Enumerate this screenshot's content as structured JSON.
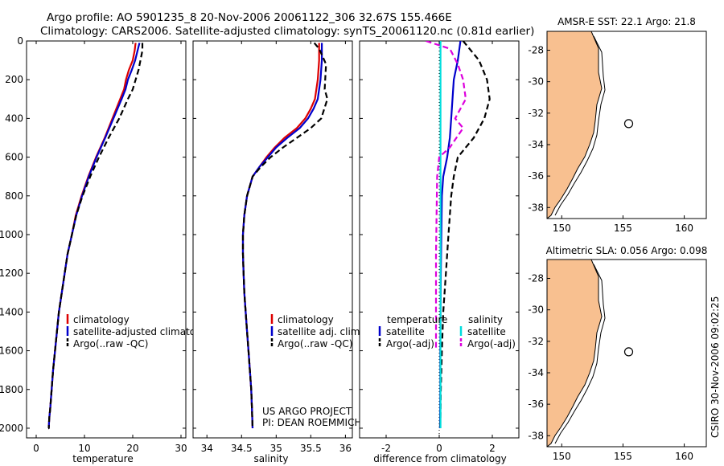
{
  "header": {
    "line1": "Argo profile: AO 5901235_8 20-Nov-2006 20061122_306 32.67S 155.466E",
    "line2": "Climatology: CARS2006. Satellite-adjusted climatology: synTS_20061120.nc (0.81d earlier)"
  },
  "credit": "CSIRO 30-Nov-2006 09:02:25",
  "project": {
    "line1": "US ARGO PROJECT",
    "line2": "PI: DEAN ROEMMICH"
  },
  "colors": {
    "climatology": "#dd0000",
    "satellite": "#0000cc",
    "argo": "#000000",
    "sal_satellite": "#00dddd",
    "sal_argo": "#dd00dd",
    "land": "#f8c090"
  },
  "chart_data": [
    {
      "type": "line",
      "xlabel": "temperature",
      "ylabel": "",
      "xlim": [
        -2,
        31
      ],
      "ylim": [
        2050,
        0
      ],
      "xticks": [
        0,
        10,
        20,
        30
      ],
      "yticks": [
        0,
        200,
        400,
        600,
        800,
        1000,
        1200,
        1400,
        1600,
        1800,
        2000
      ],
      "legend": [
        "climatology",
        "satellite-adjusted climatology",
        "Argo(..raw -QC)"
      ],
      "series": [
        {
          "name": "climatology",
          "color": "#dd0000",
          "dash": "",
          "x": [
            20.6,
            20.4,
            20.0,
            19.2,
            18.6,
            18.2,
            17.4,
            15.8,
            14.2,
            12.4,
            10.8,
            9.4,
            8.2,
            7.4,
            6.5,
            5.9,
            5.3,
            4.7,
            4.3,
            3.9,
            3.5,
            3.2,
            2.9,
            2.7,
            2.6,
            2.5
          ],
          "y": [
            10,
            50,
            100,
            150,
            200,
            250,
            300,
            400,
            500,
            600,
            700,
            800,
            900,
            1000,
            1100,
            1200,
            1300,
            1400,
            1500,
            1600,
            1700,
            1800,
            1900,
            1950,
            2000,
            2000
          ]
        },
        {
          "name": "satellite-adjusted climatology",
          "color": "#0000cc",
          "dash": "",
          "x": [
            21.4,
            21.0,
            20.5,
            19.8,
            19.0,
            18.5,
            17.7,
            16.0,
            14.3,
            12.5,
            10.9,
            9.5,
            8.3,
            7.4,
            6.5,
            5.9,
            5.3,
            4.7,
            4.3,
            3.9,
            3.5,
            3.2,
            2.9,
            2.7,
            2.6,
            2.5
          ],
          "y": [
            10,
            50,
            100,
            150,
            200,
            250,
            300,
            400,
            500,
            600,
            700,
            800,
            900,
            1000,
            1100,
            1200,
            1300,
            1400,
            1500,
            1600,
            1700,
            1800,
            1900,
            1950,
            2000,
            2000
          ]
        },
        {
          "name": "Argo(..raw -QC)",
          "color": "#000000",
          "dash": "7,4",
          "x": [
            22.0,
            22.0,
            21.6,
            21.2,
            20.6,
            20.0,
            19.0,
            17.2,
            15.0,
            13.0,
            11.2,
            9.6,
            8.3,
            7.4,
            6.5,
            5.9,
            5.3,
            4.7,
            4.3,
            3.9,
            3.5,
            3.2,
            2.9,
            2.7,
            2.6,
            2.5
          ],
          "y": [
            10,
            50,
            100,
            150,
            200,
            250,
            300,
            400,
            500,
            600,
            700,
            800,
            900,
            1000,
            1100,
            1200,
            1300,
            1400,
            1500,
            1600,
            1700,
            1800,
            1900,
            1950,
            2000,
            2000
          ]
        }
      ]
    },
    {
      "type": "line",
      "xlabel": "salinity",
      "ylabel": "",
      "xlim": [
        33.8,
        36.1
      ],
      "ylim": [
        2050,
        0
      ],
      "xticks": [
        34,
        34.5,
        35,
        35.5,
        36
      ],
      "legend": [
        "climatology",
        "satellite adj. clim.",
        "Argo(..raw -QC)"
      ],
      "series": [
        {
          "name": "climatology",
          "color": "#dd0000",
          "dash": "",
          "x": [
            35.62,
            35.62,
            35.6,
            35.56,
            35.5,
            35.42,
            35.3,
            35.12,
            34.98,
            34.86,
            34.76,
            34.66,
            34.58,
            34.54,
            34.52,
            34.52,
            34.53,
            34.54,
            34.56,
            34.58,
            34.6,
            34.62,
            34.64,
            34.65,
            34.66
          ],
          "y": [
            10,
            100,
            200,
            300,
            350,
            400,
            450,
            500,
            550,
            600,
            650,
            700,
            800,
            900,
            1000,
            1100,
            1200,
            1300,
            1400,
            1500,
            1600,
            1700,
            1800,
            1900,
            2000
          ]
        },
        {
          "name": "satellite adj. clim.",
          "color": "#0000cc",
          "dash": "",
          "x": [
            35.66,
            35.66,
            35.64,
            35.6,
            35.54,
            35.46,
            35.34,
            35.16,
            35.0,
            34.88,
            34.76,
            34.66,
            34.58,
            34.54,
            34.52,
            34.52,
            34.53,
            34.54,
            34.56,
            34.58,
            34.6,
            34.62,
            34.64,
            34.65,
            34.66
          ],
          "y": [
            10,
            100,
            200,
            300,
            350,
            400,
            450,
            500,
            550,
            600,
            650,
            700,
            800,
            900,
            1000,
            1100,
            1200,
            1300,
            1400,
            1500,
            1600,
            1700,
            1800,
            1900,
            2000
          ]
        },
        {
          "name": "Argo(..raw -QC)",
          "color": "#000000",
          "dash": "7,4",
          "x": [
            35.55,
            35.62,
            35.72,
            35.7,
            35.74,
            35.65,
            35.5,
            35.3,
            35.1,
            34.92,
            34.78,
            34.66,
            34.58,
            34.54,
            34.52,
            34.52,
            34.53,
            34.54,
            34.56,
            34.58,
            34.6,
            34.62,
            34.64,
            34.65,
            34.66
          ],
          "y": [
            10,
            40,
            120,
            250,
            300,
            400,
            450,
            500,
            550,
            600,
            650,
            700,
            800,
            900,
            1000,
            1100,
            1200,
            1300,
            1400,
            1500,
            1600,
            1700,
            1800,
            1900,
            2000
          ]
        }
      ]
    },
    {
      "type": "line",
      "xlabel": "difference from climatology",
      "ylabel": "",
      "xlim": [
        -3,
        3
      ],
      "ylim": [
        2050,
        0
      ],
      "xticks": [
        -2,
        0,
        2
      ],
      "legend_temperature": {
        "header": "temperature",
        "items": [
          "satellite",
          "Argo(-adj)"
        ]
      },
      "legend_salinity": {
        "header": "salinity",
        "items": [
          "satellite",
          "Argo(-adj)"
        ]
      },
      "series": [
        {
          "name": "satellite",
          "group": "temperature",
          "color": "#0000cc",
          "dash": "",
          "x": [
            0.8,
            0.7,
            0.55,
            0.5,
            0.45,
            0.4,
            0.3,
            0.15,
            0.1,
            0.08,
            0.06,
            0.05,
            0.04,
            0.04,
            0.03
          ],
          "y": [
            0,
            100,
            200,
            300,
            400,
            500,
            600,
            700,
            800,
            1000,
            1200,
            1400,
            1600,
            1800,
            2000
          ]
        },
        {
          "name": "Argo(-adj)",
          "group": "temperature",
          "color": "#000000",
          "dash": "7,4",
          "x": [
            0.9,
            1.5,
            1.8,
            1.9,
            1.7,
            1.3,
            0.7,
            0.55,
            0.45,
            0.35,
            0.25,
            0.15,
            0.1,
            0.06,
            0.04
          ],
          "y": [
            0,
            100,
            200,
            300,
            400,
            500,
            600,
            700,
            800,
            1000,
            1200,
            1400,
            1600,
            1800,
            2000
          ]
        },
        {
          "name": "satellite",
          "group": "salinity",
          "color": "#00dddd",
          "dash": "",
          "x": [
            0.05,
            0.05,
            0.05,
            0.05,
            0.05,
            0.05,
            0.05,
            0.05,
            0.05,
            0.05,
            0.05,
            0.05,
            0.05,
            0.05
          ],
          "y": [
            0,
            100,
            300,
            500,
            700,
            900,
            1100,
            1300,
            1500,
            1600,
            1700,
            1800,
            1900,
            2000
          ]
        },
        {
          "name": "Argo(-adj)",
          "group": "salinity",
          "color": "#dd00dd",
          "dash": "7,4",
          "x": [
            -0.5,
            0.4,
            0.7,
            0.9,
            1.0,
            0.8,
            0.6,
            0.9,
            0.4,
            0.0,
            -0.08,
            -0.1,
            -0.12,
            -0.12
          ],
          "y": [
            0,
            40,
            120,
            200,
            300,
            350,
            400,
            450,
            550,
            600,
            700,
            900,
            1100,
            1600
          ]
        }
      ]
    },
    {
      "type": "heatmap",
      "title": "AMSR-E SST: 22.1 Argo: 21.8",
      "xlim": [
        148.8,
        161.8
      ],
      "ylim": [
        -38.7,
        -26.8
      ],
      "xticks": [
        150,
        155,
        160
      ],
      "yticks": [
        -28,
        -30,
        -32,
        -34,
        -36,
        -38
      ],
      "marker": {
        "lon": 155.466,
        "lat": -32.67
      }
    },
    {
      "type": "heatmap",
      "title": "Altimetric SLA: 0.056 Argo: 0.098",
      "xlim": [
        148.8,
        161.8
      ],
      "ylim": [
        -38.7,
        -26.8
      ],
      "xticks": [
        150,
        155,
        160
      ],
      "yticks": [
        -28,
        -30,
        -32,
        -34,
        -36,
        -38
      ],
      "marker": {
        "lon": 155.466,
        "lat": -32.67
      }
    }
  ]
}
